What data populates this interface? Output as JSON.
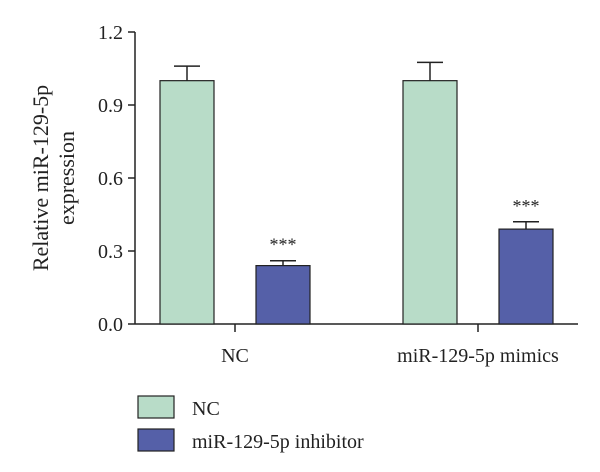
{
  "chart_data": {
    "type": "bar",
    "categories": [
      "NC",
      "miR-129-5p mimics"
    ],
    "series": [
      {
        "name": "NC",
        "color": "#b8dcc8",
        "values": [
          1.0,
          1.0
        ],
        "errors": [
          0.06,
          0.075
        ],
        "annotations": [
          "",
          ""
        ]
      },
      {
        "name": "miR-129-5p inhibitor",
        "color": "#5560a8",
        "values": [
          0.24,
          0.39
        ],
        "errors": [
          0.02,
          0.03
        ],
        "annotations": [
          "***",
          "***"
        ]
      }
    ],
    "ylabel_lines": [
      "Relative miR-129-5p",
      "expression"
    ],
    "ylim": [
      0,
      1.2
    ],
    "yticks": [
      "0.0",
      "0.3",
      "0.6",
      "0.9",
      "1.2"
    ],
    "grid": false,
    "legend_position": "bottom-left"
  }
}
